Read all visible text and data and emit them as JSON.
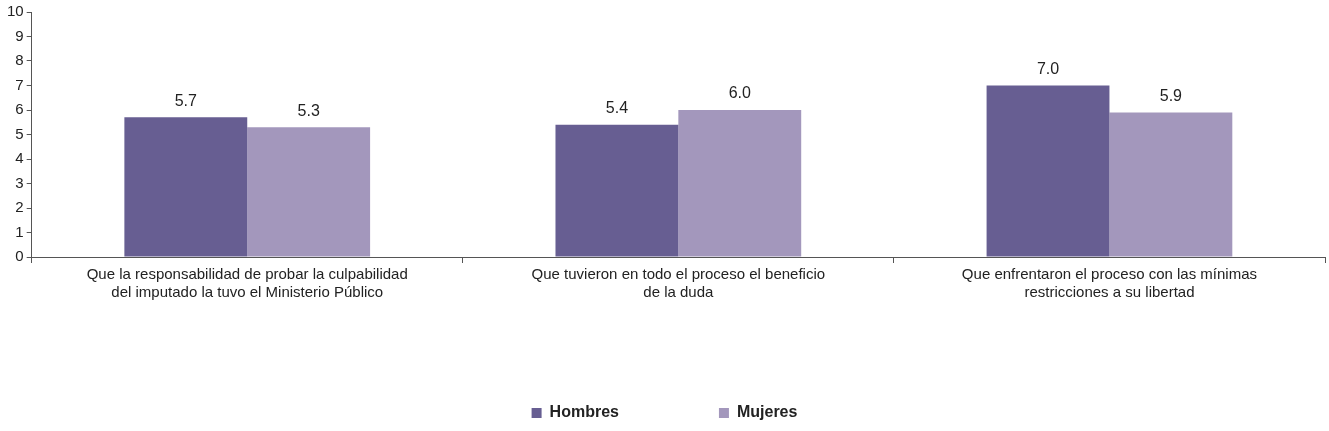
{
  "chart_data": {
    "type": "bar",
    "categories": [
      "Que la responsabilidad de probar la culpabilidad\ndel imputado la tuvo el Ministerio Público",
      "Que tuvieron en todo el proceso el beneficio\nde la duda",
      "Que enfrentaron el proceso con las mínimas\nrestricciones a su libertad"
    ],
    "series": [
      {
        "name": "Hombres",
        "color": "#675e92",
        "values": [
          5.7,
          5.4,
          7.0
        ],
        "value_labels": [
          "5.7",
          "5.4",
          "7.0"
        ]
      },
      {
        "name": "Mujeres",
        "color": "#a397bc",
        "values": [
          5.3,
          6.0,
          5.9
        ],
        "value_labels": [
          "5.3",
          "6.0",
          "5.9"
        ]
      }
    ],
    "ylim": [
      0,
      10
    ],
    "yticks": [
      0,
      1,
      2,
      3,
      4,
      5,
      6,
      7,
      8,
      9,
      10
    ],
    "legend": "bottom",
    "grid": false
  }
}
